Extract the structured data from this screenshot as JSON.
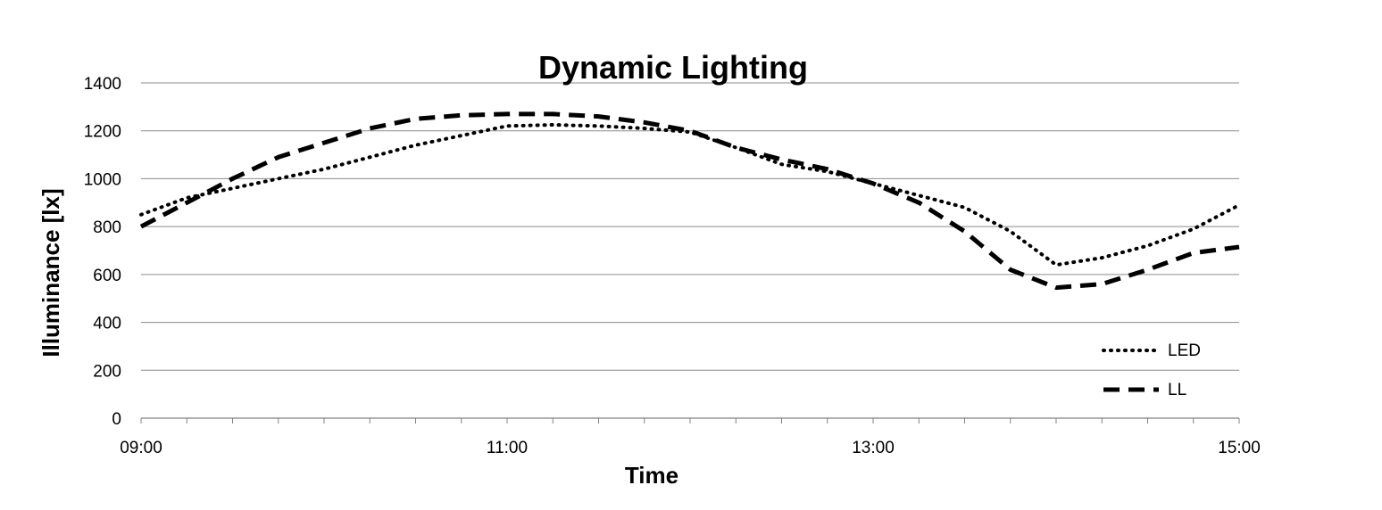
{
  "chart_data": {
    "type": "line",
    "title": "Dynamic Lighting",
    "xlabel": "Time",
    "ylabel": "Illuminance [lx]",
    "ylim": [
      0,
      1400
    ],
    "yticks": [
      0,
      200,
      400,
      600,
      800,
      1000,
      1200,
      1400
    ],
    "xlim": [
      "09:00",
      "15:00"
    ],
    "xticks": [
      "09:00",
      "11:00",
      "13:00",
      "15:00"
    ],
    "grid": "horizontal",
    "legend_position": "bottom-right",
    "x": [
      "09:00",
      "09:15",
      "09:30",
      "09:45",
      "10:00",
      "10:15",
      "10:30",
      "10:45",
      "11:00",
      "11:15",
      "11:30",
      "11:45",
      "12:00",
      "12:15",
      "12:30",
      "12:45",
      "13:00",
      "13:15",
      "13:30",
      "13:45",
      "14:00",
      "14:15",
      "14:30",
      "14:45",
      "15:00"
    ],
    "series": [
      {
        "name": "LED",
        "style": "dotted",
        "color": "#000000",
        "values": [
          850,
          920,
          960,
          1000,
          1040,
          1090,
          1140,
          1180,
          1220,
          1225,
          1220,
          1210,
          1195,
          1130,
          1060,
          1030,
          980,
          930,
          880,
          780,
          640,
          670,
          720,
          790,
          890
        ]
      },
      {
        "name": "LL",
        "style": "dashed",
        "color": "#000000",
        "values": [
          800,
          900,
          1000,
          1090,
          1150,
          1210,
          1250,
          1265,
          1270,
          1270,
          1260,
          1235,
          1200,
          1130,
          1080,
          1040,
          980,
          900,
          780,
          620,
          545,
          560,
          620,
          690,
          715
        ]
      }
    ]
  }
}
